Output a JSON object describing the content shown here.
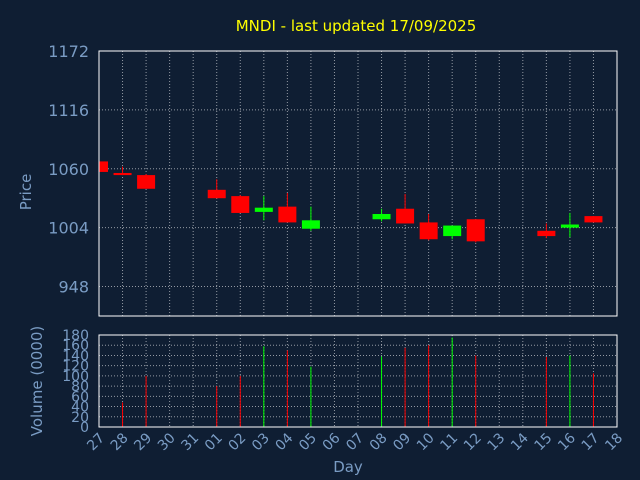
{
  "chart_data": {
    "type": "candlestick",
    "title": "MNDI - last updated 17/09/2025",
    "xlabel": "Day",
    "ylabel": "Price",
    "volume_label": "Volume (0000)",
    "ylim": [
      920,
      1172
    ],
    "price_ticks": [
      948,
      1004,
      1060,
      1116,
      1172
    ],
    "volume_ylim": [
      0,
      180
    ],
    "volume_ticks": [
      0,
      20,
      40,
      60,
      80,
      100,
      120,
      140,
      160,
      180
    ],
    "x_ticks": [
      "27",
      "28",
      "29",
      "30",
      "31",
      "01",
      "02",
      "03",
      "04",
      "05",
      "06",
      "07",
      "08",
      "09",
      "10",
      "11",
      "12",
      "13",
      "14",
      "15",
      "16",
      "17",
      "18"
    ],
    "grid": true,
    "colors": {
      "background": "#0f1e33",
      "frame": "#ffffff",
      "grid": "#ffffff",
      "title": "#ffff00",
      "axis_text": "#7a9cc4",
      "up": "#00ff00",
      "down": "#ff0000"
    },
    "candles": [
      {
        "day": "27",
        "open": 1067,
        "high": 1070,
        "low": 1057,
        "close": 1057,
        "volume": 0
      },
      {
        "day": "28",
        "open": 1056,
        "high": 1062,
        "low": 1054,
        "close": 1054,
        "volume": 48
      },
      {
        "day": "29",
        "open": 1054,
        "high": 1055,
        "low": 1041,
        "close": 1041,
        "volume": 100
      },
      {
        "day": "01",
        "open": 1040,
        "high": 1050,
        "low": 1032,
        "close": 1032,
        "volume": 80
      },
      {
        "day": "02",
        "open": 1034,
        "high": 1035,
        "low": 1018,
        "close": 1018,
        "volume": 100
      },
      {
        "day": "03",
        "open": 1019,
        "high": 1034,
        "low": 1011,
        "close": 1023,
        "volume": 158
      },
      {
        "day": "04",
        "open": 1024,
        "high": 1037,
        "low": 1009,
        "close": 1009,
        "volume": 150
      },
      {
        "day": "05",
        "open": 1003,
        "high": 1024,
        "low": 1001,
        "close": 1011,
        "volume": 118
      },
      {
        "day": "08",
        "open": 1012,
        "high": 1022,
        "low": 1010,
        "close": 1017,
        "volume": 138
      },
      {
        "day": "09",
        "open": 1022,
        "high": 1036,
        "low": 1008,
        "close": 1008,
        "volume": 155
      },
      {
        "day": "10",
        "open": 1009,
        "high": 1017,
        "low": 992,
        "close": 993,
        "volume": 160
      },
      {
        "day": "11",
        "open": 996,
        "high": 1006,
        "low": 993,
        "close": 1006,
        "volume": 175
      },
      {
        "day": "12",
        "open": 1012,
        "high": 1012,
        "low": 990,
        "close": 991,
        "volume": 140
      },
      {
        "day": "15",
        "open": 1001,
        "high": 1008,
        "low": 994,
        "close": 996,
        "volume": 137
      },
      {
        "day": "16",
        "open": 1004,
        "high": 1018,
        "low": 995,
        "close": 1007,
        "volume": 140
      },
      {
        "day": "17",
        "open": 1015,
        "high": 1015,
        "low": 1009,
        "close": 1009,
        "volume": 105
      }
    ]
  }
}
